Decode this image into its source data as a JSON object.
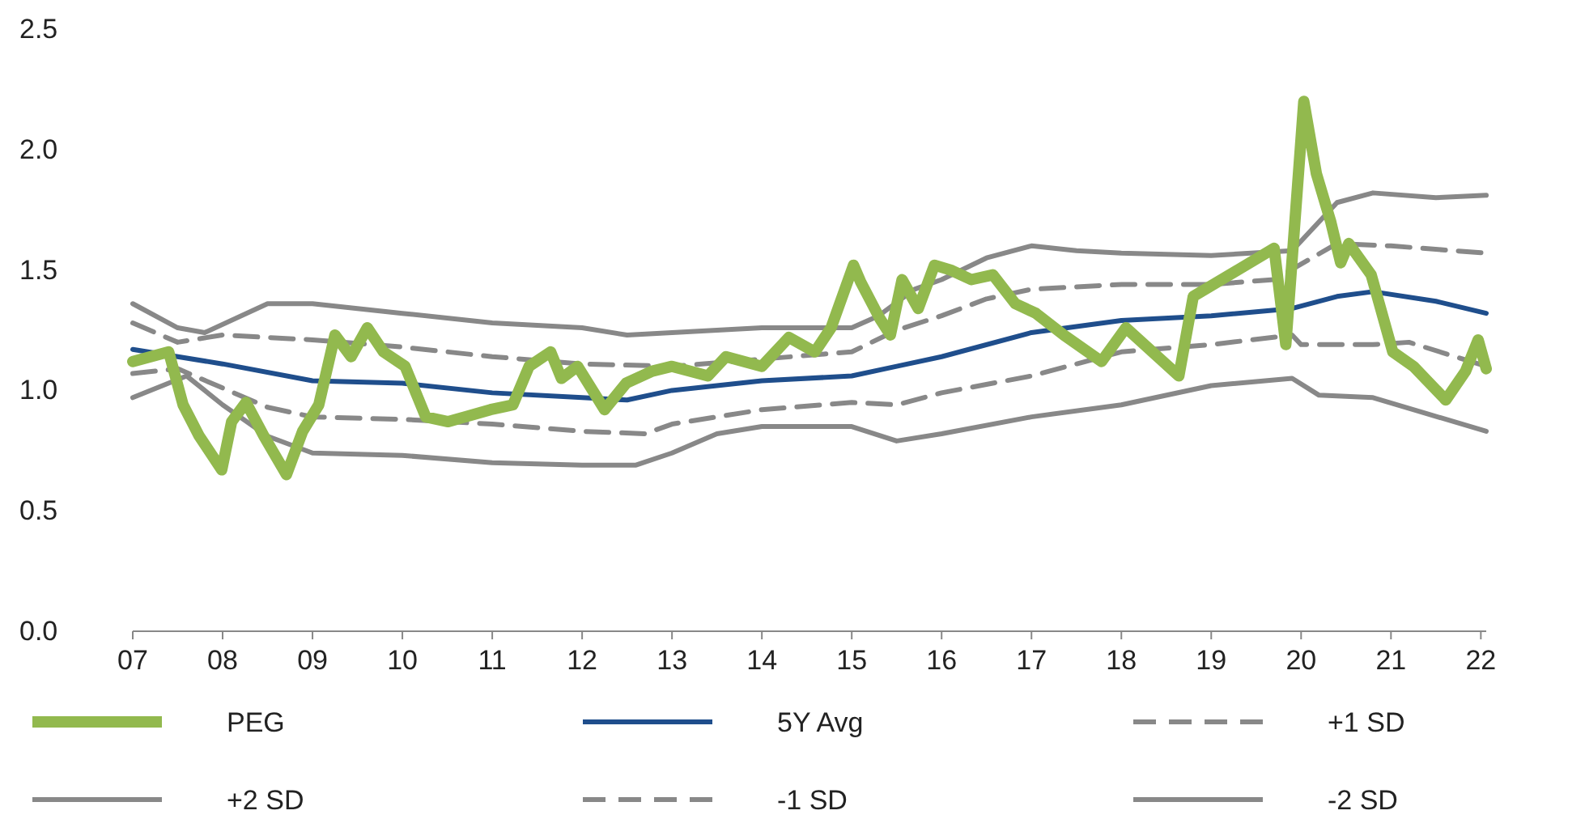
{
  "chart_data": {
    "type": "line",
    "legend": "bottom",
    "grid": false,
    "xlim": [
      2007,
      2022.06
    ],
    "xticks": [
      {
        "value": 2007,
        "label": "07"
      },
      {
        "value": 2008,
        "label": "08"
      },
      {
        "value": 2009,
        "label": "09"
      },
      {
        "value": 2010,
        "label": "10"
      },
      {
        "value": 2011,
        "label": "11"
      },
      {
        "value": 2012,
        "label": "12"
      },
      {
        "value": 2013,
        "label": "13"
      },
      {
        "value": 2014,
        "label": "14"
      },
      {
        "value": 2015,
        "label": "15"
      },
      {
        "value": 2016,
        "label": "16"
      },
      {
        "value": 2017,
        "label": "17"
      },
      {
        "value": 2018,
        "label": "18"
      },
      {
        "value": 2019,
        "label": "19"
      },
      {
        "value": 2020,
        "label": "20"
      },
      {
        "value": 2021,
        "label": "21"
      },
      {
        "value": 2022,
        "label": "22"
      }
    ],
    "ylim": [
      0,
      2.5
    ],
    "yticks": [
      {
        "value": 0,
        "label": "0.0"
      },
      {
        "value": 0.5,
        "label": "0.5"
      },
      {
        "value": 1,
        "label": "1.0"
      },
      {
        "value": 1.5,
        "label": "1.5"
      },
      {
        "value": 2,
        "label": "2.0"
      },
      {
        "value": 2.5,
        "label": "2.5"
      }
    ],
    "series": [
      {
        "name": "PEG",
        "color": "#92b94e",
        "line_style": "solid",
        "x": [
          2007,
          2007.4,
          2007.56,
          2007.74,
          2007.99,
          2008.1,
          2008.26,
          2008.46,
          2008.71,
          2008.89,
          2009.07,
          2009.25,
          2009.43,
          2009.61,
          2009.79,
          2010.03,
          2010.26,
          2010.51,
          2010.98,
          2011.23,
          2011.41,
          2011.65,
          2011.77,
          2011.95,
          2012.25,
          2012.49,
          2012.78,
          2013.0,
          2013.4,
          2013.6,
          2014.0,
          2014.3,
          2014.59,
          2014.77,
          2015.02,
          2015.1,
          2015.31,
          2015.43,
          2015.56,
          2015.74,
          2015.92,
          2016.1,
          2016.33,
          2016.57,
          2016.82,
          2017.05,
          2017.36,
          2017.78,
          2018.05,
          2018.64,
          2018.8,
          2019.7,
          2019.83,
          2020.03,
          2020.17,
          2020.33,
          2020.44,
          2020.53,
          2020.78,
          2021.02,
          2021.25,
          2021.61,
          2021.83,
          2021.97,
          2022.06
        ],
        "values": [
          1.12,
          1.16,
          0.94,
          0.81,
          0.67,
          0.87,
          0.95,
          0.81,
          0.65,
          0.83,
          0.94,
          1.23,
          1.14,
          1.26,
          1.16,
          1.1,
          0.89,
          0.87,
          0.92,
          0.94,
          1.1,
          1.16,
          1.05,
          1.1,
          0.92,
          1.03,
          1.08,
          1.1,
          1.06,
          1.14,
          1.1,
          1.22,
          1.16,
          1.26,
          1.52,
          1.45,
          1.3,
          1.23,
          1.46,
          1.34,
          1.52,
          1.5,
          1.46,
          1.48,
          1.36,
          1.32,
          1.23,
          1.12,
          1.26,
          1.06,
          1.39,
          1.59,
          1.19,
          2.2,
          1.9,
          1.7,
          1.53,
          1.61,
          1.48,
          1.16,
          1.1,
          0.96,
          1.08,
          1.21,
          1.09
        ]
      },
      {
        "name": "5Y Avg",
        "color": "#1f4e8c",
        "line_style": "solid",
        "x": [
          2007,
          2008,
          2009,
          2010,
          2011,
          2012,
          2012.5,
          2013,
          2014,
          2015,
          2015.5,
          2016,
          2017,
          2018,
          2019,
          2019.9,
          2020.4,
          2020.8,
          2021.5,
          2022.06
        ],
        "values": [
          1.17,
          1.11,
          1.04,
          1.03,
          0.99,
          0.97,
          0.96,
          1.0,
          1.04,
          1.06,
          1.1,
          1.14,
          1.24,
          1.29,
          1.31,
          1.34,
          1.39,
          1.41,
          1.37,
          1.32
        ]
      },
      {
        "name": "+1 SD",
        "color": "#888888",
        "line_style": "dashed",
        "x": [
          2007,
          2007.5,
          2008,
          2009,
          2010,
          2011,
          2012,
          2013,
          2014,
          2015,
          2015.5,
          2016,
          2016.5,
          2017,
          2018,
          2019,
          2019.7,
          2020.4,
          2021,
          2022.06
        ],
        "values": [
          1.28,
          1.2,
          1.23,
          1.21,
          1.18,
          1.14,
          1.11,
          1.1,
          1.13,
          1.16,
          1.25,
          1.31,
          1.38,
          1.42,
          1.44,
          1.44,
          1.46,
          1.61,
          1.6,
          1.57
        ]
      },
      {
        "name": "+2 SD",
        "color": "#888888",
        "line_style": "solid",
        "x": [
          2007,
          2007.5,
          2007.8,
          2008.5,
          2009,
          2010,
          2011,
          2012,
          2012.5,
          2013,
          2014,
          2015,
          2015.3,
          2015.7,
          2016,
          2016.5,
          2017,
          2017.5,
          2018,
          2019,
          2019.9,
          2020.4,
          2020.8,
          2021.5,
          2022.06
        ],
        "values": [
          1.36,
          1.26,
          1.24,
          1.36,
          1.36,
          1.32,
          1.28,
          1.26,
          1.23,
          1.24,
          1.26,
          1.26,
          1.31,
          1.42,
          1.46,
          1.55,
          1.6,
          1.58,
          1.57,
          1.56,
          1.58,
          1.78,
          1.82,
          1.8,
          1.81
        ]
      },
      {
        "name": "-1 SD",
        "color": "#888888",
        "line_style": "dashed",
        "x": [
          2007,
          2007.5,
          2008,
          2008.5,
          2009,
          2010,
          2011,
          2012,
          2012.7,
          2013,
          2014,
          2015,
          2015.5,
          2016,
          2017,
          2018,
          2019,
          2019.9,
          2020,
          2020.8,
          2021.2,
          2022.06
        ],
        "values": [
          1.07,
          1.09,
          1.01,
          0.93,
          0.89,
          0.88,
          0.86,
          0.83,
          0.82,
          0.86,
          0.92,
          0.95,
          0.94,
          0.99,
          1.06,
          1.16,
          1.19,
          1.23,
          1.19,
          1.19,
          1.2,
          1.1
        ]
      },
      {
        "name": "-2 SD",
        "color": "#888888",
        "line_style": "solid",
        "x": [
          2007,
          2007.6,
          2008,
          2008.5,
          2009,
          2010,
          2011,
          2012,
          2012.6,
          2013,
          2013.5,
          2014,
          2015,
          2015.5,
          2016,
          2017,
          2018,
          2019,
          2019.9,
          2020.2,
          2020.8,
          2022.06
        ],
        "values": [
          0.97,
          1.06,
          0.94,
          0.81,
          0.74,
          0.73,
          0.7,
          0.69,
          0.69,
          0.74,
          0.82,
          0.85,
          0.85,
          0.79,
          0.82,
          0.89,
          0.94,
          1.02,
          1.05,
          0.98,
          0.97,
          0.83
        ]
      }
    ]
  }
}
